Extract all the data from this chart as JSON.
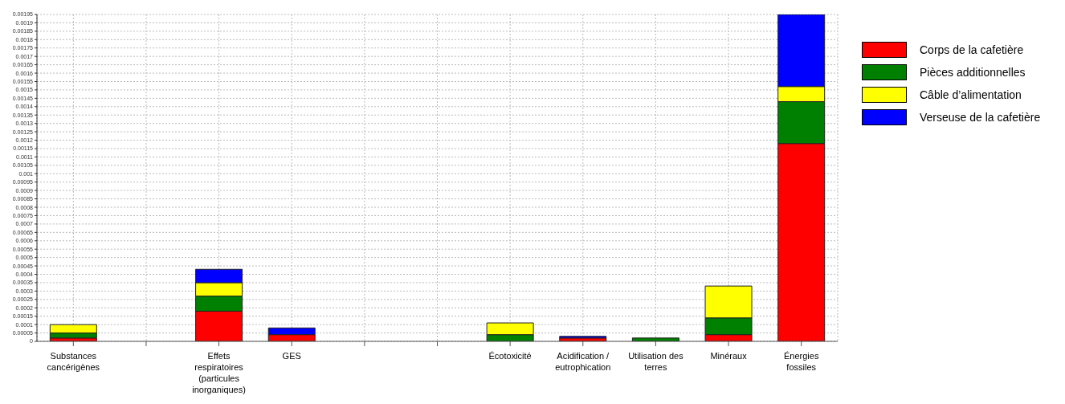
{
  "chart_data": {
    "type": "bar",
    "stacked": true,
    "categories": [
      "Substances cancérigènes",
      null,
      "Effets respiratoires (particules inorganiques)",
      "GES",
      null,
      null,
      "Écotoxicité",
      "Acidification / eutrophication",
      "Utilisation des terres",
      "Minéraux",
      "Énergies fossiles"
    ],
    "series": [
      {
        "name": "Corps de la cafetière",
        "color": "#ff0000",
        "values": [
          2e-05,
          null,
          0.00018,
          4e-05,
          null,
          null,
          0,
          2e-05,
          null,
          4e-05,
          0.00118
        ]
      },
      {
        "name": "Pièces additionnelles",
        "color": "#008000",
        "values": [
          3e-05,
          null,
          9e-05,
          0,
          null,
          null,
          4e-05,
          0,
          2e-05,
          0.0001,
          0.00025
        ]
      },
      {
        "name": "Câble d’alimentation",
        "color": "#ffff00",
        "values": [
          5e-05,
          null,
          8e-05,
          0,
          null,
          null,
          7e-05,
          0,
          0,
          0.00019,
          9e-05
        ]
      },
      {
        "name": "Verseuse de la cafetière",
        "color": "#0000ff",
        "values": [
          0,
          null,
          8e-05,
          4e-05,
          null,
          null,
          0,
          1e-05,
          0,
          0,
          0.00043
        ]
      }
    ],
    "ylim": [
      0,
      0.00195
    ],
    "yticks": [
      0,
      {
        "value": 5e-05,
        "label": "0.00005"
      },
      0.0001,
      0.00015,
      0.0002,
      0.00025,
      0.0003,
      0.00035,
      0.0004,
      0.00045,
      0.0005,
      0.00055,
      0.0006,
      0.00065,
      0.0007,
      0.00075,
      0.0008,
      0.00085,
      0.0009,
      0.00095,
      0.001,
      0.00105,
      0.0011,
      0.00115,
      0.0012,
      0.00125,
      0.0013,
      0.00135,
      0.0014,
      0.00145,
      0.0015,
      0.00155,
      0.0016,
      0.00165,
      0.0017,
      0.00175,
      0.0018,
      0.00185,
      0.0019,
      0.00195
    ],
    "grid": true,
    "legend": "right"
  }
}
